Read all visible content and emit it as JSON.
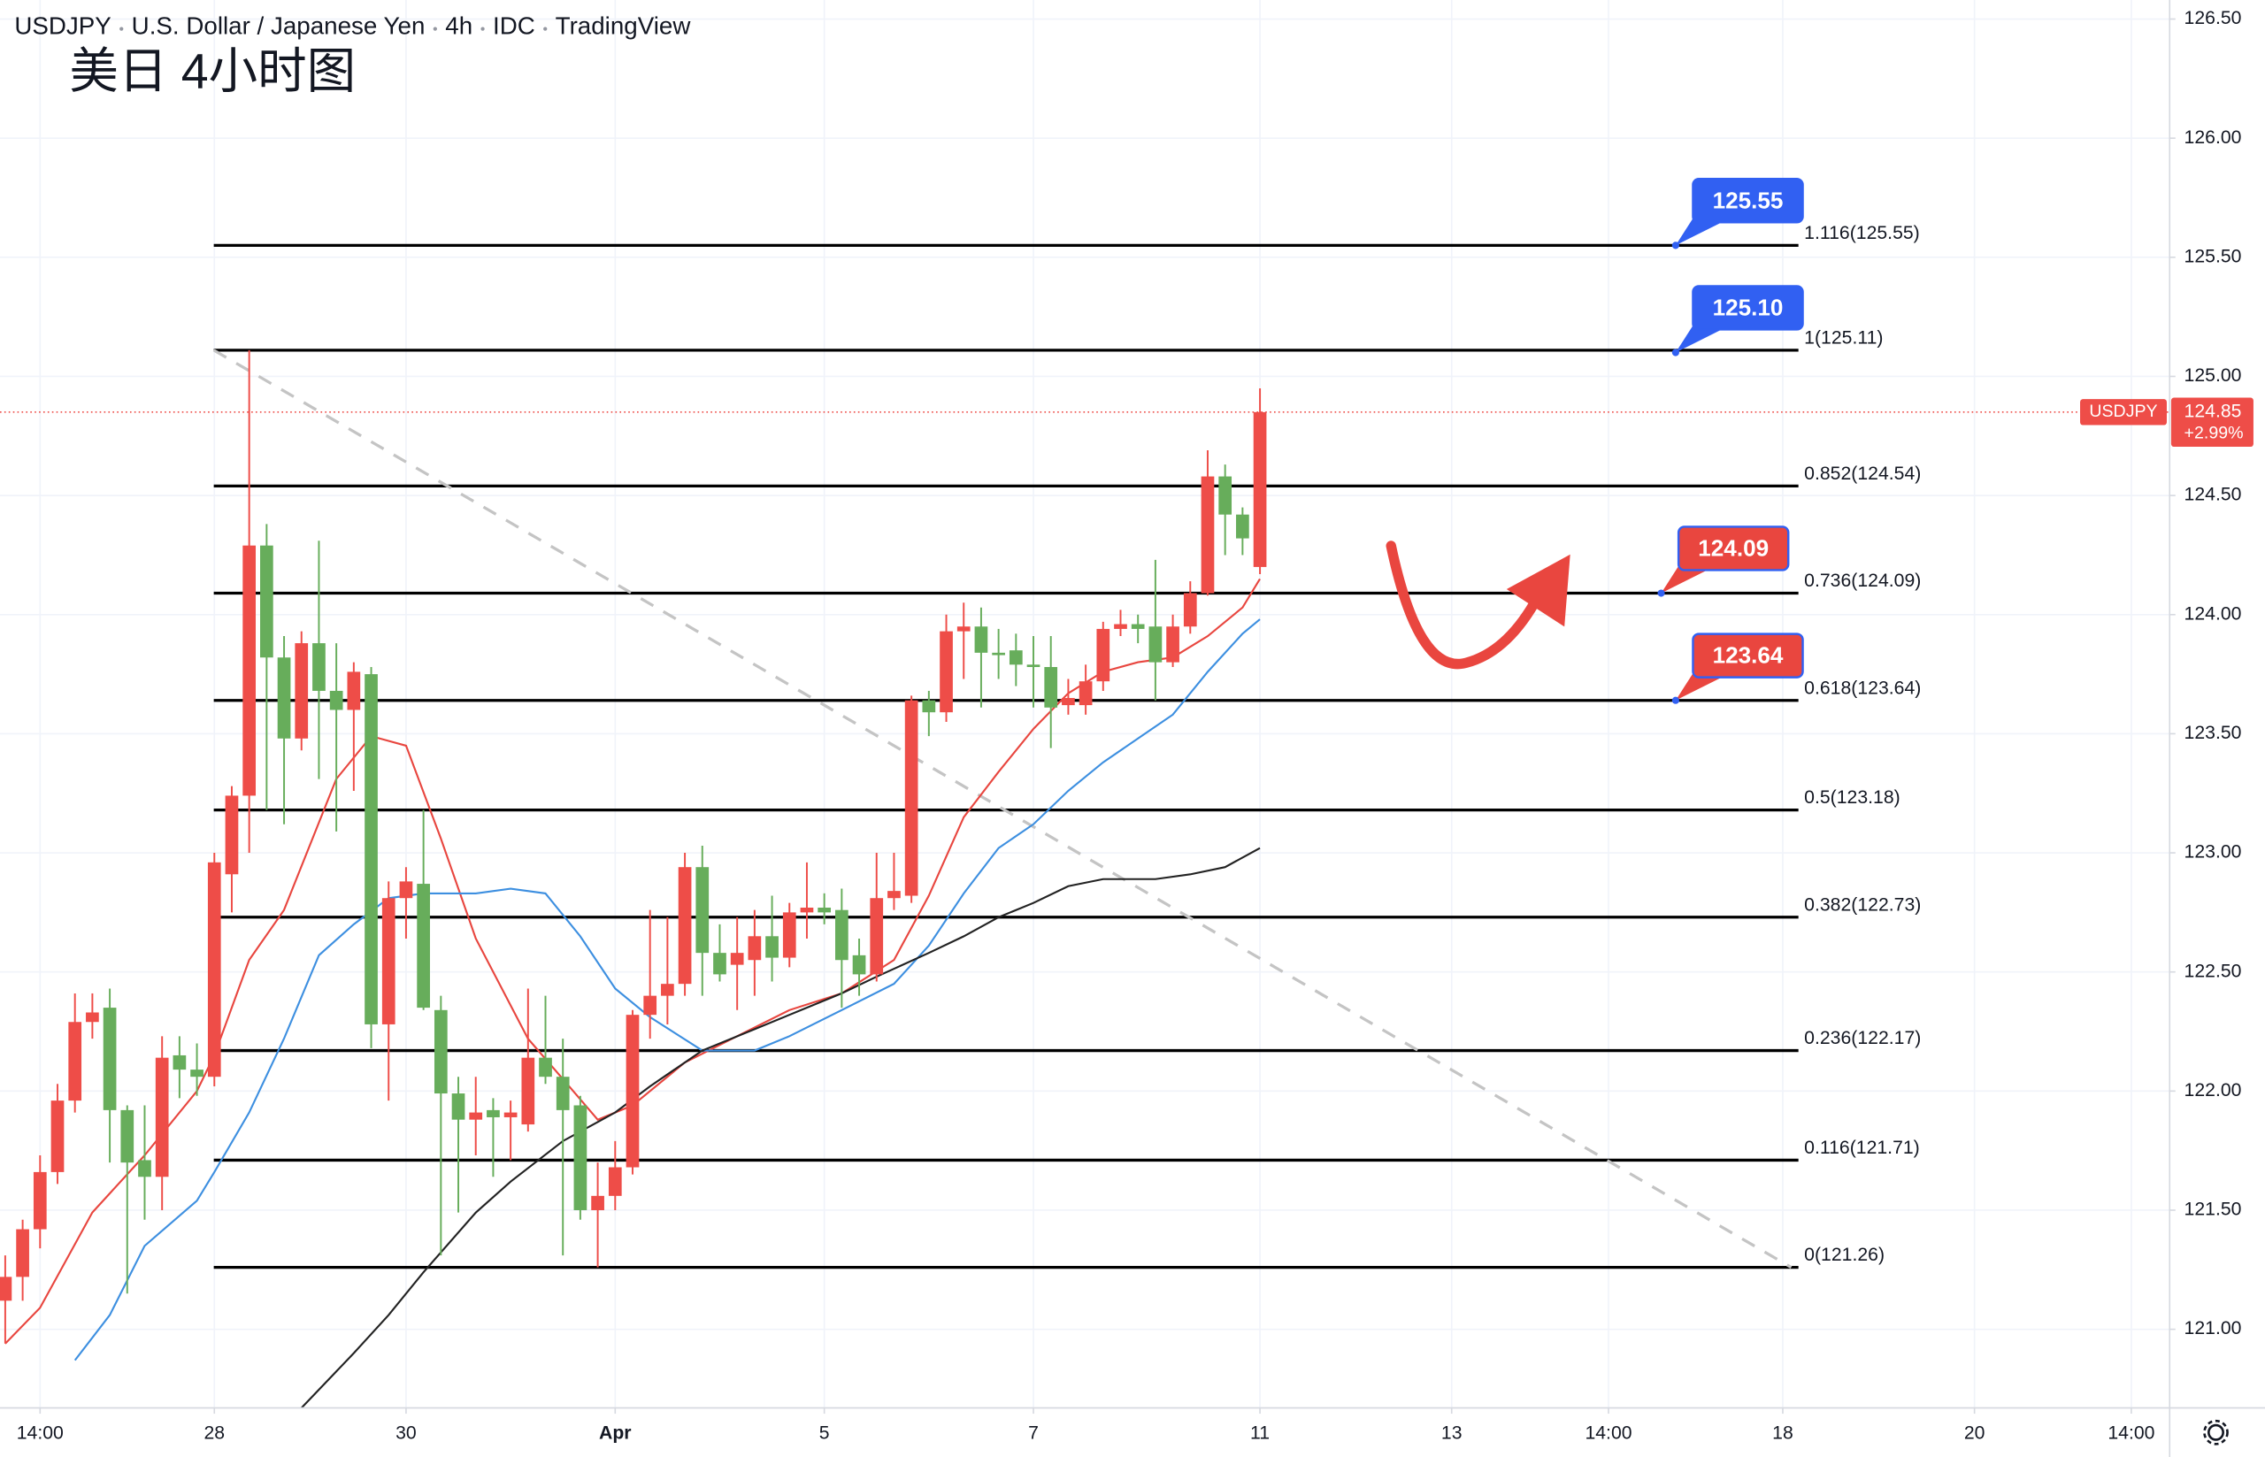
{
  "chart_data": {
    "type": "candlestick",
    "header": [
      "USDJPY",
      "U.S. Dollar / Japanese Yen",
      "4h",
      "IDC",
      "TradingView"
    ],
    "title": "美日 4小时图",
    "symbol": "USDJPY",
    "last_price": 124.85,
    "change": "+2.99%",
    "up_color": "#ee4d48",
    "down_color": "#67ad5b",
    "grid": true,
    "xlim": [
      -0.3,
      124.2
    ],
    "ylim": [
      120.67,
      126.58
    ],
    "xticks": [
      {
        "value": 2,
        "label": "14:00"
      },
      {
        "value": 12,
        "label": "28"
      },
      {
        "value": 23,
        "label": "30"
      },
      {
        "value": 35,
        "label": "Apr"
      },
      {
        "value": 47,
        "label": "5"
      },
      {
        "value": 59,
        "label": "7"
      },
      {
        "value": 72,
        "label": "11"
      },
      {
        "value": 83,
        "label": "13"
      },
      {
        "value": 92,
        "label": "14:00"
      },
      {
        "value": 102,
        "label": "18"
      },
      {
        "value": 113,
        "label": "20"
      },
      {
        "value": 122,
        "label": "14:00"
      }
    ],
    "yticks": [
      {
        "value": 121,
        "label": "121.00"
      },
      {
        "value": 121.5,
        "label": "121.50"
      },
      {
        "value": 122,
        "label": "122.00"
      },
      {
        "value": 122.5,
        "label": "122.50"
      },
      {
        "value": 123,
        "label": "123.00"
      },
      {
        "value": 123.5,
        "label": "123.50"
      },
      {
        "value": 124,
        "label": "124.00"
      },
      {
        "value": 124.5,
        "label": "124.50"
      },
      {
        "value": 125,
        "label": "125.00"
      },
      {
        "value": 125.5,
        "label": "125.50"
      },
      {
        "value": 126,
        "label": "126.00"
      },
      {
        "value": 126.5,
        "label": "126.50"
      }
    ],
    "candles": {
      "open": [
        121.12,
        121.22,
        121.42,
        121.66,
        121.96,
        122.29,
        122.35,
        121.92,
        121.71,
        121.64,
        122.15,
        122.09,
        122.06,
        122.91,
        123.24,
        124.29,
        123.82,
        123.48,
        123.88,
        123.68,
        123.6,
        123.75,
        122.28,
        122.81,
        122.87,
        122.34,
        121.99,
        121.88,
        121.92,
        121.89,
        121.86,
        122.14,
        122.06,
        121.94,
        121.5,
        121.56,
        121.68,
        122.32,
        122.4,
        122.45,
        122.94,
        122.58,
        122.53,
        122.55,
        122.65,
        122.56,
        122.75,
        122.77,
        122.76,
        122.57,
        122.49,
        122.81,
        122.82,
        123.64,
        123.59,
        123.93,
        123.95,
        123.84,
        123.85,
        123.79,
        123.78,
        123.62,
        123.62,
        123.72,
        123.94,
        123.96,
        123.95,
        123.8,
        123.95,
        124.09,
        124.58,
        124.42,
        124.2
      ],
      "high": [
        121.31,
        121.46,
        121.73,
        122.03,
        122.41,
        122.41,
        122.43,
        121.94,
        121.94,
        122.23,
        122.23,
        122.2,
        123.0,
        123.28,
        125.11,
        124.38,
        123.91,
        123.93,
        124.31,
        123.88,
        123.8,
        123.78,
        122.88,
        122.94,
        123.18,
        122.4,
        122.06,
        122.06,
        121.97,
        121.96,
        122.43,
        122.4,
        122.22,
        121.98,
        121.7,
        121.79,
        122.34,
        122.76,
        122.73,
        123.0,
        123.03,
        122.7,
        122.73,
        122.76,
        122.82,
        122.79,
        122.96,
        122.83,
        122.85,
        122.64,
        123.0,
        123.0,
        123.66,
        123.68,
        124.0,
        124.05,
        124.03,
        123.94,
        123.92,
        123.91,
        123.91,
        123.73,
        123.79,
        123.97,
        124.02,
        124.0,
        124.23,
        124.0,
        124.14,
        124.69,
        124.63,
        124.45,
        124.95
      ],
      "low": [
        120.94,
        121.12,
        121.34,
        121.61,
        121.91,
        122.22,
        121.7,
        121.15,
        121.46,
        121.5,
        121.97,
        121.98,
        122.02,
        122.75,
        123.0,
        123.18,
        123.12,
        123.43,
        123.31,
        123.09,
        123.26,
        122.18,
        121.96,
        122.64,
        122.34,
        121.31,
        121.49,
        121.73,
        121.64,
        121.71,
        121.83,
        122.03,
        121.31,
        121.46,
        121.26,
        121.5,
        121.65,
        122.22,
        122.28,
        122.4,
        122.4,
        122.46,
        122.34,
        122.4,
        122.46,
        122.52,
        122.64,
        122.7,
        122.35,
        122.4,
        122.46,
        122.76,
        122.79,
        123.49,
        123.55,
        123.73,
        123.61,
        123.73,
        123.7,
        123.61,
        123.44,
        123.58,
        123.58,
        123.68,
        123.91,
        123.88,
        123.64,
        123.78,
        123.92,
        124.08,
        124.25,
        124.25,
        124.17
      ],
      "close": [
        121.22,
        121.42,
        121.66,
        121.96,
        122.29,
        122.33,
        121.92,
        121.7,
        121.64,
        122.14,
        122.09,
        122.06,
        122.96,
        123.24,
        124.29,
        123.82,
        123.48,
        123.88,
        123.68,
        123.6,
        123.76,
        122.28,
        122.81,
        122.88,
        122.35,
        121.99,
        121.88,
        121.91,
        121.89,
        121.91,
        122.14,
        122.06,
        121.92,
        121.5,
        121.56,
        121.68,
        122.32,
        122.4,
        122.45,
        122.94,
        122.58,
        122.49,
        122.58,
        122.65,
        122.56,
        122.75,
        122.77,
        122.75,
        122.55,
        122.49,
        122.81,
        122.84,
        123.64,
        123.59,
        123.93,
        123.95,
        123.84,
        123.83,
        123.79,
        123.78,
        123.61,
        123.65,
        123.72,
        123.94,
        123.96,
        123.94,
        123.8,
        123.95,
        124.09,
        124.58,
        124.42,
        124.32,
        124.85
      ]
    },
    "series": [
      {
        "color": "#e8463f",
        "x": [
          0,
          2,
          5,
          8,
          11,
          12,
          14,
          16,
          19,
          21,
          23,
          25,
          27,
          30,
          32,
          34,
          36,
          39,
          42,
          45,
          48,
          51,
          53,
          55,
          57,
          59,
          61,
          63,
          65,
          67,
          69,
          71,
          72
        ],
        "values": [
          120.94,
          121.09,
          121.49,
          121.73,
          122.0,
          122.15,
          122.55,
          122.76,
          123.31,
          123.49,
          123.45,
          123.06,
          122.64,
          122.22,
          122.05,
          121.88,
          121.94,
          122.12,
          122.23,
          122.34,
          122.41,
          122.55,
          122.82,
          123.15,
          123.34,
          123.52,
          123.67,
          123.76,
          123.8,
          123.82,
          123.91,
          124.03,
          124.15
        ]
      },
      {
        "color": "#3d8fe0",
        "x": [
          4,
          6,
          8,
          11,
          12,
          14,
          16,
          18,
          20,
          22,
          24,
          27,
          29,
          31,
          33,
          35,
          37,
          40,
          43,
          45,
          48,
          51,
          53,
          55,
          57,
          59,
          61,
          63,
          65,
          67,
          69,
          71,
          72
        ],
        "values": [
          120.87,
          121.06,
          121.35,
          121.54,
          121.66,
          121.91,
          122.22,
          122.57,
          122.7,
          122.81,
          122.83,
          122.83,
          122.85,
          122.83,
          122.65,
          122.43,
          122.31,
          122.17,
          122.17,
          122.23,
          122.34,
          122.45,
          122.61,
          122.83,
          123.02,
          123.12,
          123.26,
          123.38,
          123.48,
          123.58,
          123.76,
          123.92,
          123.98
        ]
      },
      {
        "color": "#222222",
        "x": [
          17,
          20,
          22,
          24,
          27,
          29,
          32,
          35,
          37,
          40,
          43,
          45,
          48,
          50,
          53,
          55,
          57,
          59,
          61,
          63,
          66,
          68,
          70,
          72
        ],
        "values": [
          120.67,
          120.9,
          121.06,
          121.24,
          121.49,
          121.62,
          121.79,
          121.91,
          122.02,
          122.17,
          122.26,
          122.32,
          122.41,
          122.48,
          122.58,
          122.65,
          122.73,
          122.79,
          122.86,
          122.89,
          122.89,
          122.91,
          122.94,
          123.02
        ]
      }
    ],
    "fib_color": "#000000",
    "fib_levels": [
      {
        "label": "1.116(125.55)",
        "value": 125.55
      },
      {
        "label": "1(125.11)",
        "value": 125.11
      },
      {
        "label": "0.852(124.54)",
        "value": 124.54
      },
      {
        "label": "0.736(124.09)",
        "value": 124.09
      },
      {
        "label": "0.618(123.64)",
        "value": 123.64
      },
      {
        "label": "0.5(123.18)",
        "value": 123.18
      },
      {
        "label": "0.382(122.73)",
        "value": 122.73
      },
      {
        "label": "0.236(122.17)",
        "value": 122.17
      },
      {
        "label": "0.116(121.71)",
        "value": 121.71
      },
      {
        "label": "0(121.26)",
        "value": 121.26
      }
    ],
    "trend_color": "#c4c4c4",
    "annotations": [
      {
        "value": 125.55,
        "label": "125.55",
        "color": "#3160f2"
      },
      {
        "value": 125.1,
        "label": "125.10",
        "color": "#3160f2"
      },
      {
        "value": 124.09,
        "label": "124.09",
        "color": "#e9463f"
      },
      {
        "value": 123.64,
        "label": "123.64",
        "color": "#e9463f"
      }
    ]
  }
}
